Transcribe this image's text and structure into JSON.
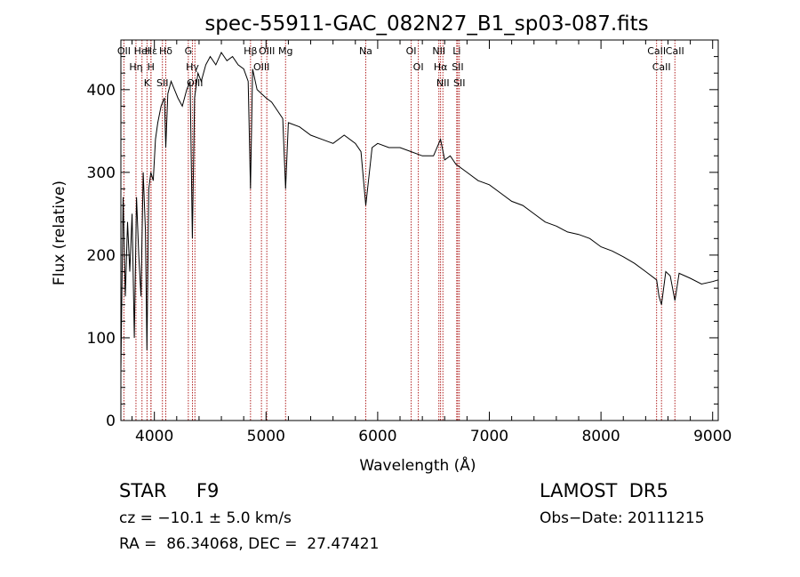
{
  "chart_data": {
    "type": "line",
    "title": "spec-55911-GAC_082N27_B1_sp03-087.fits",
    "xlabel": "Wavelength (Å)",
    "ylabel": "Flux (relative)",
    "xlim": [
      3700,
      9050
    ],
    "ylim": [
      0,
      460
    ],
    "xticks": [
      4000,
      5000,
      6000,
      7000,
      8000,
      9000
    ],
    "yticks": [
      0,
      100,
      200,
      300,
      400
    ],
    "grid": false,
    "legend": "none",
    "line_color": "#000000",
    "marker_color": "#b22222",
    "series": [
      {
        "x": [
          3700,
          3720,
          3740,
          3760,
          3780,
          3800,
          3820,
          3840,
          3860,
          3880,
          3900,
          3920,
          3933,
          3950,
          3968,
          3990,
          4010,
          4030,
          4060,
          4090,
          4102,
          4120,
          4150,
          4180,
          4210,
          4250,
          4290,
          4320,
          4340,
          4360,
          4390,
          4420,
          4460,
          4500,
          4550,
          4600,
          4650,
          4700,
          4750,
          4800,
          4840,
          4861,
          4880,
          4920,
          4960,
          5000,
          5050,
          5100,
          5150,
          5175,
          5200,
          5300,
          5400,
          5500,
          5600,
          5700,
          5800,
          5850,
          5893,
          5950,
          6000,
          6100,
          6200,
          6300,
          6400,
          6500,
          6563,
          6600,
          6650,
          6700,
          6800,
          6900,
          7000,
          7100,
          7200,
          7300,
          7400,
          7500,
          7600,
          7700,
          7800,
          7900,
          8000,
          8100,
          8200,
          8300,
          8400,
          8498,
          8520,
          8542,
          8580,
          8620,
          8662,
          8700,
          8800,
          8900,
          9000,
          9050
        ],
        "y": [
          60,
          270,
          150,
          240,
          180,
          250,
          100,
          270,
          200,
          150,
          300,
          230,
          85,
          280,
          300,
          290,
          340,
          360,
          380,
          390,
          330,
          395,
          410,
          400,
          390,
          380,
          400,
          410,
          220,
          390,
          420,
          410,
          430,
          440,
          430,
          445,
          435,
          440,
          430,
          425,
          410,
          280,
          425,
          400,
          395,
          390,
          385,
          375,
          365,
          280,
          360,
          355,
          345,
          340,
          335,
          345,
          335,
          325,
          260,
          330,
          335,
          330,
          330,
          325,
          320,
          320,
          340,
          315,
          320,
          310,
          300,
          290,
          285,
          275,
          265,
          260,
          250,
          240,
          235,
          228,
          225,
          220,
          210,
          205,
          198,
          190,
          180,
          170,
          150,
          140,
          180,
          175,
          145,
          178,
          172,
          165,
          168,
          170
        ]
      }
    ],
    "lines": [
      {
        "wl": 3727,
        "labels": [
          "OII"
        ]
      },
      {
        "wl": 3835,
        "labels": [
          "Hη"
        ]
      },
      {
        "wl": 3889,
        "labels": [
          "HeI"
        ]
      },
      {
        "wl": 3934,
        "labels": [
          "K"
        ]
      },
      {
        "wl": 3969,
        "labels": [
          "H"
        ]
      },
      {
        "wl": 3970,
        "labels": [
          "Hε"
        ]
      },
      {
        "wl": 4072,
        "labels": [
          "SII"
        ]
      },
      {
        "wl": 4102,
        "labels": [
          "Hδ"
        ]
      },
      {
        "wl": 4304,
        "labels": [
          "G"
        ]
      },
      {
        "wl": 4341,
        "labels": [
          "Hγ"
        ]
      },
      {
        "wl": 4363,
        "labels": [
          "OIII"
        ]
      },
      {
        "wl": 4861,
        "labels": [
          "Hβ"
        ]
      },
      {
        "wl": 4959,
        "labels": [
          "OIII"
        ]
      },
      {
        "wl": 5007,
        "labels": [
          "OIII"
        ]
      },
      {
        "wl": 5175,
        "labels": [
          "Mg"
        ]
      },
      {
        "wl": 5893,
        "labels": [
          "Na"
        ]
      },
      {
        "wl": 6300,
        "labels": [
          "OI"
        ]
      },
      {
        "wl": 6364,
        "labels": [
          "OI"
        ]
      },
      {
        "wl": 6548,
        "labels": [
          "NII"
        ]
      },
      {
        "wl": 6563,
        "labels": [
          "Hα"
        ]
      },
      {
        "wl": 6584,
        "labels": [
          "NII"
        ]
      },
      {
        "wl": 6708,
        "labels": [
          "Li"
        ]
      },
      {
        "wl": 6717,
        "labels": [
          "SII"
        ]
      },
      {
        "wl": 6731,
        "labels": [
          "SII"
        ]
      },
      {
        "wl": 8498,
        "labels": [
          "CaII"
        ]
      },
      {
        "wl": 8542,
        "labels": [
          "CaII"
        ]
      },
      {
        "wl": 8662,
        "labels": [
          "CaII"
        ]
      }
    ]
  },
  "info": {
    "object": "STAR     F9",
    "cz": "cz = −10.1 ± 5.0 km/s",
    "coords": "RA =  86.34068, DEC =  27.47421",
    "survey": "LAMOST  DR5",
    "obsdate": "Obs−Date: 20111215"
  }
}
